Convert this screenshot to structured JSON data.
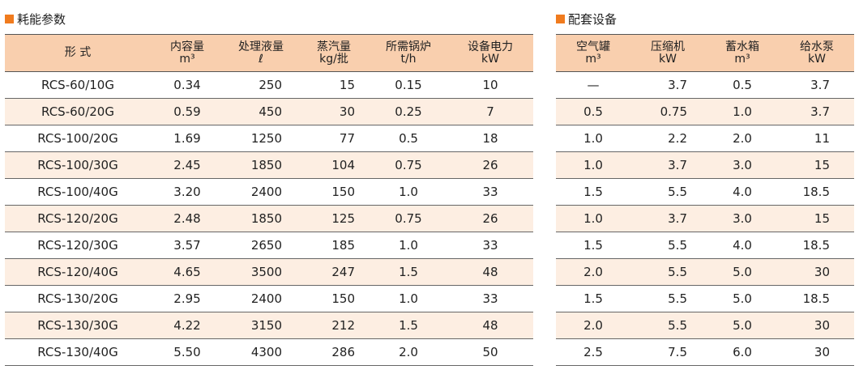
{
  "colors": {
    "accent": "#f07b1e",
    "header_bg": "#f9cfae",
    "alt_row": "#fdeee2"
  },
  "left": {
    "title": "耗能参数",
    "headers": [
      {
        "name": "形 式",
        "unit": ""
      },
      {
        "name": "内容量",
        "unit": "m³"
      },
      {
        "name": "处理液量",
        "unit": "ℓ"
      },
      {
        "name": "蒸汽量",
        "unit": "kg/批"
      },
      {
        "name": "所需锅炉",
        "unit": "t/h"
      },
      {
        "name": "设备电力",
        "unit": "kW"
      }
    ],
    "rows": [
      [
        "RCS-60/10G",
        "0.34",
        "250",
        "15",
        "0.15",
        "10"
      ],
      [
        "RCS-60/20G",
        "0.59",
        "450",
        "30",
        "0.25",
        "7"
      ],
      [
        "RCS-100/20G",
        "1.69",
        "1250",
        "77",
        "0.5",
        "18"
      ],
      [
        "RCS-100/30G",
        "2.45",
        "1850",
        "104",
        "0.75",
        "26"
      ],
      [
        "RCS-100/40G",
        "3.20",
        "2400",
        "150",
        "1.0",
        "33"
      ],
      [
        "RCS-120/20G",
        "2.48",
        "1850",
        "125",
        "0.75",
        "26"
      ],
      [
        "RCS-120/30G",
        "3.57",
        "2650",
        "185",
        "1.0",
        "33"
      ],
      [
        "RCS-120/40G",
        "4.65",
        "3500",
        "247",
        "1.5",
        "48"
      ],
      [
        "RCS-130/20G",
        "2.95",
        "2400",
        "150",
        "1.0",
        "33"
      ],
      [
        "RCS-130/30G",
        "4.22",
        "3150",
        "212",
        "1.5",
        "48"
      ],
      [
        "RCS-130/40G",
        "5.50",
        "4300",
        "286",
        "2.0",
        "50"
      ]
    ]
  },
  "right": {
    "title": "配套设备",
    "headers": [
      {
        "name": "空气罐",
        "unit": "m³"
      },
      {
        "name": "压缩机",
        "unit": "kW"
      },
      {
        "name": "蓄水箱",
        "unit": "m³"
      },
      {
        "name": "给水泵",
        "unit": "kW"
      }
    ],
    "rows": [
      [
        "—",
        "3.7",
        "0.5",
        "3.7"
      ],
      [
        "0.5",
        "0.75",
        "1.0",
        "3.7"
      ],
      [
        "1.0",
        "2.2",
        "2.0",
        "11"
      ],
      [
        "1.0",
        "3.7",
        "3.0",
        "15"
      ],
      [
        "1.5",
        "5.5",
        "4.0",
        "18.5"
      ],
      [
        "1.0",
        "3.7",
        "3.0",
        "15"
      ],
      [
        "1.5",
        "5.5",
        "4.0",
        "18.5"
      ],
      [
        "2.0",
        "5.5",
        "5.0",
        "30"
      ],
      [
        "1.5",
        "5.5",
        "5.0",
        "18.5"
      ],
      [
        "2.0",
        "5.5",
        "5.0",
        "30"
      ],
      [
        "2.5",
        "7.5",
        "6.0",
        "30"
      ]
    ]
  }
}
